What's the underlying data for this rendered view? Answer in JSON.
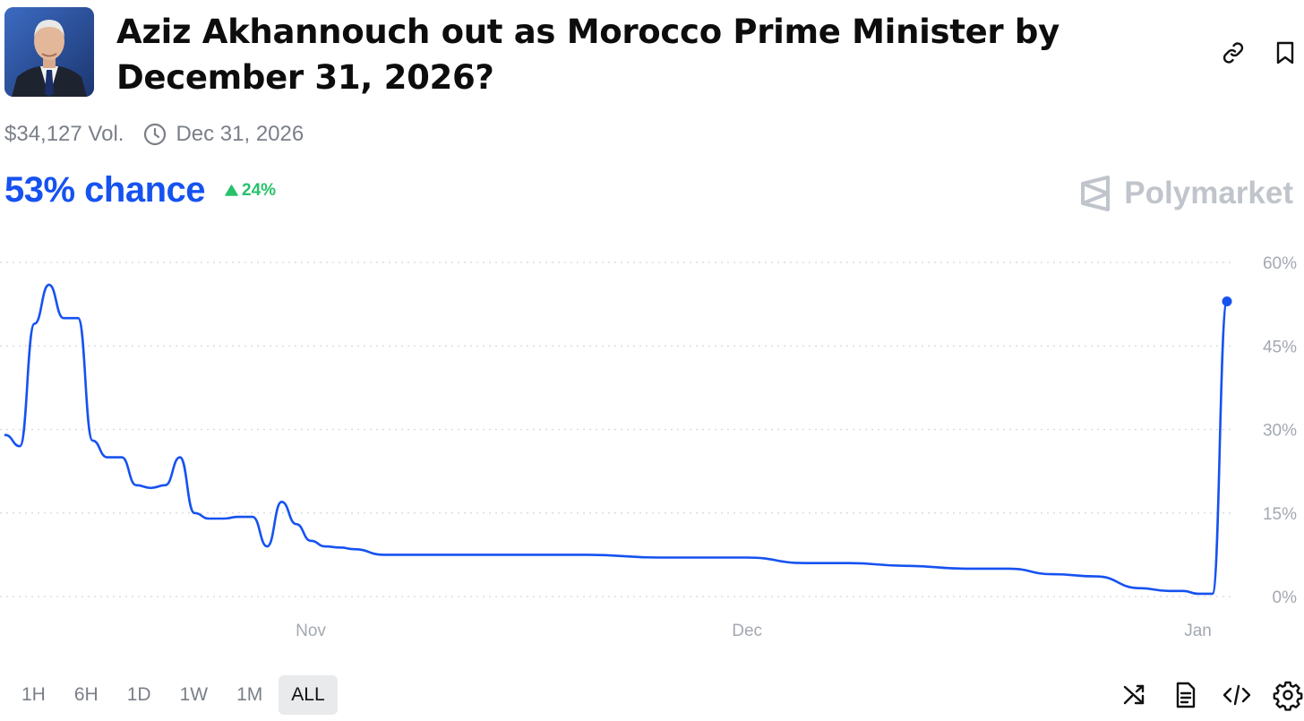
{
  "market": {
    "title": "Aziz Akhannouch out as Morocco Prime Minister by December 31, 2026?",
    "volume": "$34,127 Vol.",
    "end_date": "Dec 31, 2026",
    "chance_label": "53% chance",
    "change_label": "24%",
    "brand": "Polymarket"
  },
  "icons": {
    "avatar": "politician-photo",
    "link": "link-icon",
    "bookmark": "bookmark-icon",
    "clock": "clock-icon",
    "delta": "triangle-up-icon",
    "brand": "polymarket-logo",
    "shuffle": "shuffle-icon",
    "document": "document-icon",
    "embed": "code-icon",
    "settings": "gear-icon"
  },
  "colors": {
    "accent": "#1652f0",
    "positive": "#27c26a",
    "muted": "#7a7f88",
    "grid": "#d5d8dd"
  },
  "time_ranges": [
    {
      "label": "1H",
      "active": false
    },
    {
      "label": "6H",
      "active": false
    },
    {
      "label": "1D",
      "active": false
    },
    {
      "label": "1W",
      "active": false
    },
    {
      "label": "1M",
      "active": false
    },
    {
      "label": "ALL",
      "active": true
    }
  ],
  "chart_data": {
    "type": "line",
    "y_unit": "%",
    "ylim": [
      0,
      60
    ],
    "y_ticks": [
      "0%",
      "15%",
      "30%",
      "45%",
      "60%"
    ],
    "x_ticks": [
      "Nov",
      "Dec",
      "Jan"
    ],
    "grid": true,
    "series": [
      {
        "color": "#1652f0",
        "x": [
          "2025-10-11",
          "2025-10-12",
          "2025-10-13",
          "2025-10-14",
          "2025-10-15",
          "2025-10-16",
          "2025-10-17",
          "2025-10-18",
          "2025-10-19",
          "2025-10-20",
          "2025-10-21",
          "2025-10-22",
          "2025-10-23",
          "2025-10-24",
          "2025-10-25",
          "2025-10-26",
          "2025-10-27",
          "2025-10-28",
          "2025-10-29",
          "2025-10-30",
          "2025-10-31",
          "2025-11-01",
          "2025-11-02",
          "2025-11-03",
          "2025-11-04",
          "2025-11-06",
          "2025-11-10",
          "2025-11-15",
          "2025-11-20",
          "2025-11-25",
          "2025-11-30",
          "2025-12-01",
          "2025-12-05",
          "2025-12-08",
          "2025-12-12",
          "2025-12-16",
          "2025-12-19",
          "2025-12-22",
          "2025-12-25",
          "2025-12-28",
          "2025-12-30",
          "2025-12-31",
          "2026-01-01",
          "2026-01-02",
          "2026-01-03"
        ],
        "values": [
          29,
          27,
          49,
          56,
          50,
          50,
          28,
          25,
          25,
          20,
          19.5,
          20,
          25,
          15,
          14,
          14,
          14.3,
          14.3,
          9,
          17,
          13,
          10,
          9,
          8.8,
          8.5,
          7.5,
          7.5,
          7.5,
          7.5,
          7,
          7,
          7,
          6,
          6,
          5.5,
          5,
          5,
          4,
          3.6,
          1.5,
          1,
          1,
          0.5,
          0.5,
          53
        ]
      }
    ]
  }
}
